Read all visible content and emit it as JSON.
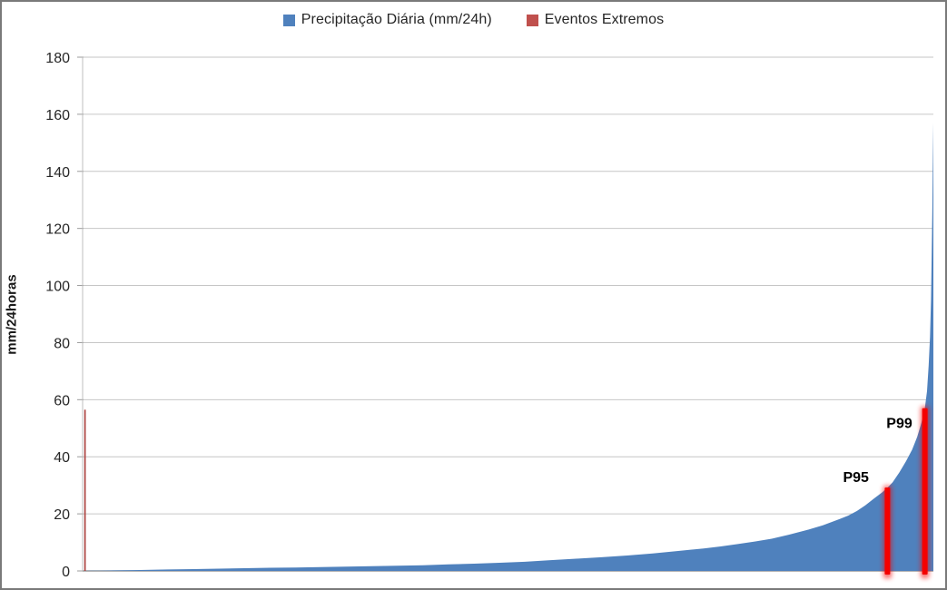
{
  "legend": {
    "items": [
      {
        "label": "Precipitação Diária (mm/24h)",
        "color": "#4F81BD"
      },
      {
        "label": "Eventos Extremos",
        "color": "#C0504D"
      }
    ]
  },
  "chart_data": {
    "type": "area",
    "title": "",
    "xlabel": "",
    "ylabel": "mm/24horas",
    "ylim": [
      0,
      180
    ],
    "yticks": [
      0,
      20,
      40,
      60,
      80,
      100,
      120,
      140,
      160,
      180
    ],
    "grid": true,
    "legend_position": "top-center",
    "colors": {
      "precipitation": "#4F81BD",
      "extreme_legend": "#C0504D",
      "extreme_bar": "#F40000",
      "extreme_thin": "#A93B38",
      "gridline": "#C6C6C6",
      "axis_line": "#BFBFBF",
      "baseline": "#9B9B9B",
      "text": "#262626"
    },
    "series": [
      {
        "name": "Precipitação Diária (mm/24h)",
        "type": "area",
        "color": "#4F81BD",
        "x_unit": "percent_of_days_sorted_ascending",
        "points": [
          [
            0,
            0
          ],
          [
            1,
            0.05
          ],
          [
            2,
            0.1
          ],
          [
            4,
            0.2
          ],
          [
            6,
            0.3
          ],
          [
            8,
            0.4
          ],
          [
            10,
            0.5
          ],
          [
            13,
            0.65
          ],
          [
            16,
            0.8
          ],
          [
            19,
            0.95
          ],
          [
            22,
            1.1
          ],
          [
            25,
            1.2
          ],
          [
            28,
            1.35
          ],
          [
            31,
            1.5
          ],
          [
            34,
            1.65
          ],
          [
            37,
            1.85
          ],
          [
            40,
            2.0
          ],
          [
            43,
            2.3
          ],
          [
            46,
            2.55
          ],
          [
            49,
            2.85
          ],
          [
            52,
            3.2
          ],
          [
            55,
            3.8
          ],
          [
            58,
            4.3
          ],
          [
            61,
            4.8
          ],
          [
            64,
            5.4
          ],
          [
            67,
            6.1
          ],
          [
            70,
            7.0
          ],
          [
            73,
            7.9
          ],
          [
            75,
            8.6
          ],
          [
            77,
            9.4
          ],
          [
            79,
            10.3
          ],
          [
            81,
            11.3
          ],
          [
            83,
            12.7
          ],
          [
            85,
            14.2
          ],
          [
            87,
            16.0
          ],
          [
            89,
            18.2
          ],
          [
            90,
            19.4
          ],
          [
            91,
            21.0
          ],
          [
            92,
            23.0
          ],
          [
            93,
            25.3
          ],
          [
            94,
            27.6
          ],
          [
            94.6,
            29.2
          ],
          [
            95.2,
            31.0
          ],
          [
            96,
            34.5
          ],
          [
            96.8,
            38.5
          ],
          [
            97.5,
            42.5
          ],
          [
            98.1,
            47.0
          ],
          [
            98.6,
            52.0
          ],
          [
            99.0,
            57.0
          ],
          [
            99.25,
            63
          ],
          [
            99.45,
            72
          ],
          [
            99.6,
            82
          ],
          [
            99.72,
            95
          ],
          [
            99.8,
            110
          ],
          [
            99.87,
            125
          ],
          [
            99.93,
            140
          ],
          [
            100,
            157
          ]
        ]
      }
    ],
    "extreme_events": {
      "name": "Eventos Extremos",
      "markers": [
        {
          "x_pct": 0.28,
          "value": 56.5,
          "style": "thin",
          "label": ""
        },
        {
          "x_pct": 94.6,
          "value": 29.2,
          "style": "glow",
          "label": "P95",
          "label_x_pct": 90.9,
          "label_value": 33
        },
        {
          "x_pct": 99.0,
          "value": 57.0,
          "style": "glow",
          "label": "P99",
          "label_x_pct": 96.0,
          "label_value": 52
        }
      ]
    }
  }
}
